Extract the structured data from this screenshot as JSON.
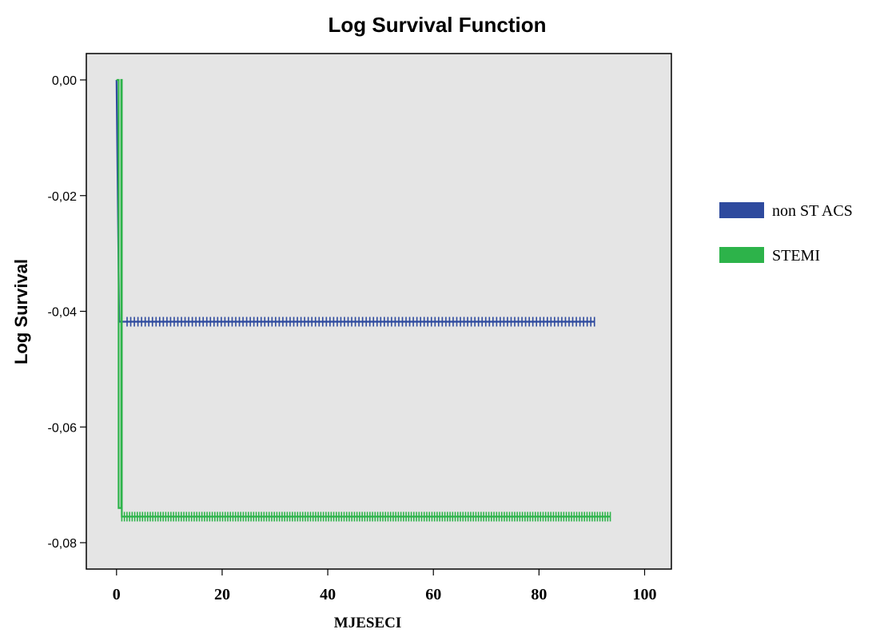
{
  "chart_data": {
    "type": "line",
    "title": "Log Survival Function",
    "xlabel": "MJESECI",
    "ylabel": "Log Survival",
    "xlim": [
      0,
      100
    ],
    "ylim": [
      -0.084,
      0.004
    ],
    "x_ticks": [
      0,
      20,
      40,
      60,
      80,
      100
    ],
    "x_tick_labels": [
      "0",
      "20",
      "40",
      "60",
      "80",
      "100"
    ],
    "y_ticks": [
      0.0,
      -0.02,
      -0.04,
      -0.06,
      -0.08
    ],
    "y_tick_labels": [
      "0,00",
      "-0,02",
      "-0,04",
      "-0,06",
      "-0,08"
    ],
    "grid": false,
    "plot_background": "#e5e5e5",
    "legend_position": "right",
    "series": [
      {
        "name": "non ST ACS",
        "color": "#2e4a9e",
        "steps": [
          {
            "x": 0,
            "y": 0.0
          },
          {
            "x": 0.5,
            "y": -0.0418
          },
          {
            "x": 90.5,
            "y": -0.0418
          }
        ],
        "censor_range": [
          2,
          90.5
        ],
        "censor_count": 130
      },
      {
        "name": "STEMI",
        "color": "#2db34a",
        "steps": [
          {
            "x": 0,
            "y": 0.0
          },
          {
            "x": 0.4,
            "y": 0.0
          },
          {
            "x": 0.4,
            "y": -0.074
          },
          {
            "x": 0.9,
            "y": -0.074
          },
          {
            "x": 0.9,
            "y": 0.0
          },
          {
            "x": 1.0,
            "y": 0.0
          },
          {
            "x": 1.0,
            "y": -0.0755
          },
          {
            "x": 93.5,
            "y": -0.0755
          }
        ],
        "censor_range": [
          1,
          93.5
        ],
        "censor_count": 190
      }
    ]
  }
}
